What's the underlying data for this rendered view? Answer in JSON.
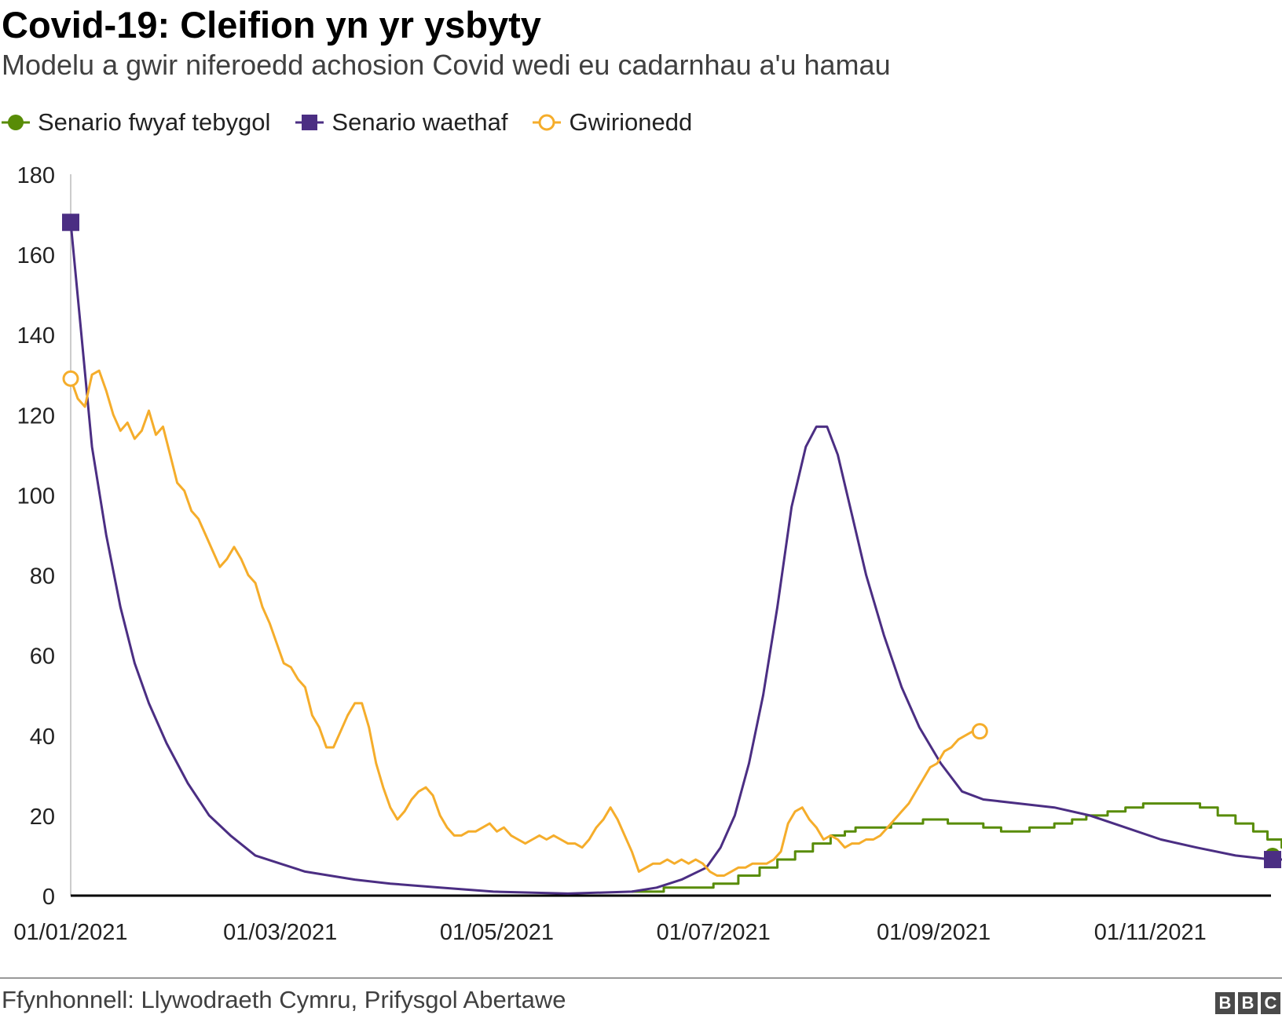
{
  "header": {
    "title": "Covid-19: Cleifion yn yr ysbyty",
    "subtitle": "Modelu a gwir niferoedd achosion Covid wedi eu cadarnhau a'u hamau"
  },
  "footer": {
    "source": "Ffynhonnell: Llywodraeth Cymru, Prifysgol Abertawe",
    "logo_letters": [
      "B",
      "B",
      "C"
    ]
  },
  "colors": {
    "most_likely": "#588c07",
    "worst": "#4b2e83",
    "actual": "#f5ad2b",
    "axis": "#000000",
    "text": "#222222"
  },
  "chart_data": {
    "type": "line",
    "title": "Covid-19: Cleifion yn yr ysbyty",
    "subtitle": "Modelu a gwir niferoedd achosion Covid wedi eu cadarnhau a'u hamau",
    "x_axis": {
      "type": "date",
      "range": [
        "2021-01-01",
        "2021-12-05"
      ],
      "ticks": [
        "2021-01-01",
        "2021-03-01",
        "2021-05-01",
        "2021-07-01",
        "2021-09-01",
        "2021-11-01"
      ],
      "tick_labels": [
        "01/01/2021",
        "01/03/2021",
        "01/05/2021",
        "01/07/2021",
        "01/09/2021",
        "01/11/2021"
      ]
    },
    "y_axis": {
      "range": [
        0,
        180
      ],
      "ticks": [
        0,
        20,
        40,
        60,
        80,
        100,
        120,
        140,
        160,
        180
      ]
    },
    "grid": false,
    "legend": "top-left",
    "series": [
      {
        "name": "Senario fwyaf tebygol",
        "color": "#588c07",
        "marker": "circle-filled",
        "step": true,
        "points": [
          [
            "2021-06-08",
            1
          ],
          [
            "2021-06-17",
            2
          ],
          [
            "2021-07-01",
            3
          ],
          [
            "2021-07-08",
            5
          ],
          [
            "2021-07-14",
            7
          ],
          [
            "2021-07-19",
            9
          ],
          [
            "2021-07-24",
            11
          ],
          [
            "2021-07-29",
            13
          ],
          [
            "2021-08-03",
            15
          ],
          [
            "2021-08-07",
            16
          ],
          [
            "2021-08-10",
            17
          ],
          [
            "2021-08-20",
            18
          ],
          [
            "2021-08-29",
            19
          ],
          [
            "2021-09-05",
            18
          ],
          [
            "2021-09-15",
            17
          ],
          [
            "2021-09-20",
            16
          ],
          [
            "2021-09-28",
            17
          ],
          [
            "2021-10-05",
            18
          ],
          [
            "2021-10-10",
            19
          ],
          [
            "2021-10-14",
            20
          ],
          [
            "2021-10-20",
            21
          ],
          [
            "2021-10-25",
            22
          ],
          [
            "2021-10-30",
            23
          ],
          [
            "2021-11-09",
            23
          ],
          [
            "2021-11-15",
            22
          ],
          [
            "2021-11-20",
            20
          ],
          [
            "2021-11-25",
            18
          ],
          [
            "2021-11-30",
            16
          ],
          [
            "2021-12-04",
            14
          ],
          [
            "2021-12-08",
            12
          ],
          [
            "2021-12-12",
            11
          ],
          [
            "2021-12-15",
            10
          ],
          [
            "2021-12-20",
            10
          ]
        ]
      },
      {
        "name": "Senario waethaf",
        "color": "#4b2e83",
        "marker": "square-filled",
        "points": [
          [
            "2021-01-01",
            168
          ],
          [
            "2021-01-04",
            140
          ],
          [
            "2021-01-07",
            112
          ],
          [
            "2021-01-11",
            90
          ],
          [
            "2021-01-15",
            72
          ],
          [
            "2021-01-19",
            58
          ],
          [
            "2021-01-23",
            48
          ],
          [
            "2021-01-28",
            38
          ],
          [
            "2021-02-03",
            28
          ],
          [
            "2021-02-09",
            20
          ],
          [
            "2021-02-15",
            15
          ],
          [
            "2021-02-22",
            10
          ],
          [
            "2021-03-01",
            8
          ],
          [
            "2021-03-08",
            6
          ],
          [
            "2021-03-15",
            5
          ],
          [
            "2021-03-22",
            4
          ],
          [
            "2021-04-01",
            3
          ],
          [
            "2021-04-15",
            2
          ],
          [
            "2021-04-30",
            1
          ],
          [
            "2021-05-21",
            0.5
          ],
          [
            "2021-06-08",
            1
          ],
          [
            "2021-06-15",
            2
          ],
          [
            "2021-06-22",
            4
          ],
          [
            "2021-06-29",
            7
          ],
          [
            "2021-07-03",
            12
          ],
          [
            "2021-07-07",
            20
          ],
          [
            "2021-07-11",
            33
          ],
          [
            "2021-07-15",
            50
          ],
          [
            "2021-07-19",
            72
          ],
          [
            "2021-07-23",
            97
          ],
          [
            "2021-07-27",
            112
          ],
          [
            "2021-07-30",
            117
          ],
          [
            "2021-08-02",
            117
          ],
          [
            "2021-08-05",
            110
          ],
          [
            "2021-08-09",
            95
          ],
          [
            "2021-08-13",
            80
          ],
          [
            "2021-08-18",
            65
          ],
          [
            "2021-08-23",
            52
          ],
          [
            "2021-08-28",
            42
          ],
          [
            "2021-09-03",
            33
          ],
          [
            "2021-09-09",
            26
          ],
          [
            "2021-09-15",
            24
          ],
          [
            "2021-09-25",
            23
          ],
          [
            "2021-10-05",
            22
          ],
          [
            "2021-10-15",
            20
          ],
          [
            "2021-10-25",
            17
          ],
          [
            "2021-11-04",
            14
          ],
          [
            "2021-11-14",
            12
          ],
          [
            "2021-11-25",
            10
          ],
          [
            "2021-12-05",
            9
          ],
          [
            "2021-12-20",
            9
          ]
        ]
      },
      {
        "name": "Gwirionedd",
        "color": "#f5ad2b",
        "marker": "circle-open",
        "points": [
          [
            "2021-01-01",
            129
          ],
          [
            "2021-01-03",
            124
          ],
          [
            "2021-01-05",
            122
          ],
          [
            "2021-01-07",
            130
          ],
          [
            "2021-01-09",
            131
          ],
          [
            "2021-01-11",
            126
          ],
          [
            "2021-01-13",
            120
          ],
          [
            "2021-01-15",
            116
          ],
          [
            "2021-01-17",
            118
          ],
          [
            "2021-01-19",
            114
          ],
          [
            "2021-01-21",
            116
          ],
          [
            "2021-01-23",
            121
          ],
          [
            "2021-01-25",
            115
          ],
          [
            "2021-01-27",
            117
          ],
          [
            "2021-01-29",
            110
          ],
          [
            "2021-01-31",
            103
          ],
          [
            "2021-02-02",
            101
          ],
          [
            "2021-02-04",
            96
          ],
          [
            "2021-02-06",
            94
          ],
          [
            "2021-02-08",
            90
          ],
          [
            "2021-02-10",
            86
          ],
          [
            "2021-02-12",
            82
          ],
          [
            "2021-02-14",
            84
          ],
          [
            "2021-02-16",
            87
          ],
          [
            "2021-02-18",
            84
          ],
          [
            "2021-02-20",
            80
          ],
          [
            "2021-02-22",
            78
          ],
          [
            "2021-02-24",
            72
          ],
          [
            "2021-02-26",
            68
          ],
          [
            "2021-02-28",
            63
          ],
          [
            "2021-03-02",
            58
          ],
          [
            "2021-03-04",
            57
          ],
          [
            "2021-03-06",
            54
          ],
          [
            "2021-03-08",
            52
          ],
          [
            "2021-03-10",
            45
          ],
          [
            "2021-03-12",
            42
          ],
          [
            "2021-03-14",
            37
          ],
          [
            "2021-03-16",
            37
          ],
          [
            "2021-03-18",
            41
          ],
          [
            "2021-03-20",
            45
          ],
          [
            "2021-03-22",
            48
          ],
          [
            "2021-03-24",
            48
          ],
          [
            "2021-03-26",
            42
          ],
          [
            "2021-03-28",
            33
          ],
          [
            "2021-03-30",
            27
          ],
          [
            "2021-04-01",
            22
          ],
          [
            "2021-04-03",
            19
          ],
          [
            "2021-04-05",
            21
          ],
          [
            "2021-04-07",
            24
          ],
          [
            "2021-04-09",
            26
          ],
          [
            "2021-04-11",
            27
          ],
          [
            "2021-04-13",
            25
          ],
          [
            "2021-04-15",
            20
          ],
          [
            "2021-04-17",
            17
          ],
          [
            "2021-04-19",
            15
          ],
          [
            "2021-04-21",
            15
          ],
          [
            "2021-04-23",
            16
          ],
          [
            "2021-04-25",
            16
          ],
          [
            "2021-04-27",
            17
          ],
          [
            "2021-04-29",
            18
          ],
          [
            "2021-05-01",
            16
          ],
          [
            "2021-05-03",
            17
          ],
          [
            "2021-05-05",
            15
          ],
          [
            "2021-05-07",
            14
          ],
          [
            "2021-05-09",
            13
          ],
          [
            "2021-05-11",
            14
          ],
          [
            "2021-05-13",
            15
          ],
          [
            "2021-05-15",
            14
          ],
          [
            "2021-05-17",
            15
          ],
          [
            "2021-05-19",
            14
          ],
          [
            "2021-05-21",
            13
          ],
          [
            "2021-05-23",
            13
          ],
          [
            "2021-05-25",
            12
          ],
          [
            "2021-05-27",
            14
          ],
          [
            "2021-05-29",
            17
          ],
          [
            "2021-05-31",
            19
          ],
          [
            "2021-06-02",
            22
          ],
          [
            "2021-06-04",
            19
          ],
          [
            "2021-06-06",
            15
          ],
          [
            "2021-06-08",
            11
          ],
          [
            "2021-06-10",
            6
          ],
          [
            "2021-06-12",
            7
          ],
          [
            "2021-06-14",
            8
          ],
          [
            "2021-06-16",
            8
          ],
          [
            "2021-06-18",
            9
          ],
          [
            "2021-06-20",
            8
          ],
          [
            "2021-06-22",
            9
          ],
          [
            "2021-06-24",
            8
          ],
          [
            "2021-06-26",
            9
          ],
          [
            "2021-06-28",
            8
          ],
          [
            "2021-06-30",
            6
          ],
          [
            "2021-07-02",
            5
          ],
          [
            "2021-07-04",
            5
          ],
          [
            "2021-07-06",
            6
          ],
          [
            "2021-07-08",
            7
          ],
          [
            "2021-07-10",
            7
          ],
          [
            "2021-07-12",
            8
          ],
          [
            "2021-07-14",
            8
          ],
          [
            "2021-07-16",
            8
          ],
          [
            "2021-07-18",
            9
          ],
          [
            "2021-07-20",
            11
          ],
          [
            "2021-07-22",
            18
          ],
          [
            "2021-07-24",
            21
          ],
          [
            "2021-07-26",
            22
          ],
          [
            "2021-07-28",
            19
          ],
          [
            "2021-07-30",
            17
          ],
          [
            "2021-08-01",
            14
          ],
          [
            "2021-08-03",
            15
          ],
          [
            "2021-08-05",
            14
          ],
          [
            "2021-08-07",
            12
          ],
          [
            "2021-08-09",
            13
          ],
          [
            "2021-08-11",
            13
          ],
          [
            "2021-08-13",
            14
          ],
          [
            "2021-08-15",
            14
          ],
          [
            "2021-08-17",
            15
          ],
          [
            "2021-08-19",
            17
          ],
          [
            "2021-08-21",
            19
          ],
          [
            "2021-08-23",
            21
          ],
          [
            "2021-08-25",
            23
          ],
          [
            "2021-08-27",
            26
          ],
          [
            "2021-08-29",
            29
          ],
          [
            "2021-08-31",
            32
          ],
          [
            "2021-09-02",
            33
          ],
          [
            "2021-09-04",
            36
          ],
          [
            "2021-09-06",
            37
          ],
          [
            "2021-09-08",
            39
          ],
          [
            "2021-09-10",
            40
          ],
          [
            "2021-09-12",
            41
          ],
          [
            "2021-09-14",
            41
          ]
        ]
      }
    ]
  }
}
